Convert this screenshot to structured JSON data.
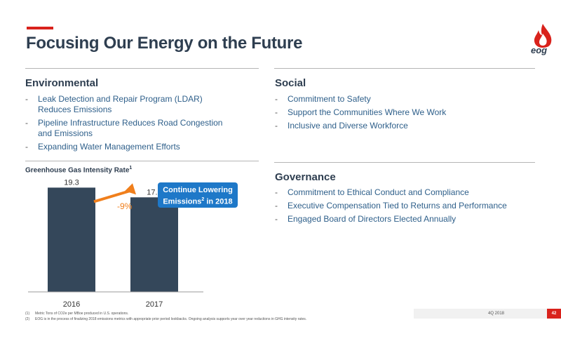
{
  "header": {
    "title": "Focusing Our Energy on the Future",
    "logo_text": "eog"
  },
  "environmental": {
    "title": "Environmental",
    "items": [
      "Leak Detection and Repair Program (LDAR) Reduces Emissions",
      "Pipeline Infrastructure Reduces Road Congestion and Emissions",
      "Expanding Water Management Efforts"
    ]
  },
  "social": {
    "title": "Social",
    "items": [
      "Commitment to Safety",
      "Support the Communities Where We Work",
      "Inclusive and Diverse Workforce"
    ]
  },
  "governance": {
    "title": "Governance",
    "items": [
      "Commitment to Ethical Conduct and Compliance",
      "Executive Compensation Tied to Returns and Performance",
      "Engaged Board of Directors Elected Annually"
    ]
  },
  "chart": {
    "title": "Greenhouse Gas Intensity Rate",
    "title_sup": "1",
    "callout_line1": "Continue Lowering",
    "callout_line2_pre": "Emissions",
    "callout_sup": "2",
    "callout_line2_post": " in 2018",
    "change_label": "-9%"
  },
  "chart_data": {
    "type": "bar",
    "categories": [
      "2016",
      "2017"
    ],
    "values": [
      19.3,
      17.5
    ],
    "title": "Greenhouse Gas Intensity Rate",
    "ylim": [
      0,
      20
    ],
    "grid": false,
    "bar_color": "#34475a",
    "annotation": "-9%",
    "annotation_color": "#f07f1c"
  },
  "footnotes": [
    {
      "num": "(1)",
      "text": "Metric Tons of CO2e per MBoe produced in U.S. operations."
    },
    {
      "num": "(2)",
      "text": "EOG is in the process of finalizing 2018 emissions metrics with appropriate prior period lookbacks. Ongoing analysis supports year over year reductions in GHG intensity rates."
    }
  ],
  "footer": {
    "date": "4Q 2018",
    "page": "42"
  },
  "colors": {
    "accent": "#d9221c",
    "navy": "#2e3e50",
    "link_blue": "#2e5f8a",
    "callout_blue": "#1e78c8"
  }
}
